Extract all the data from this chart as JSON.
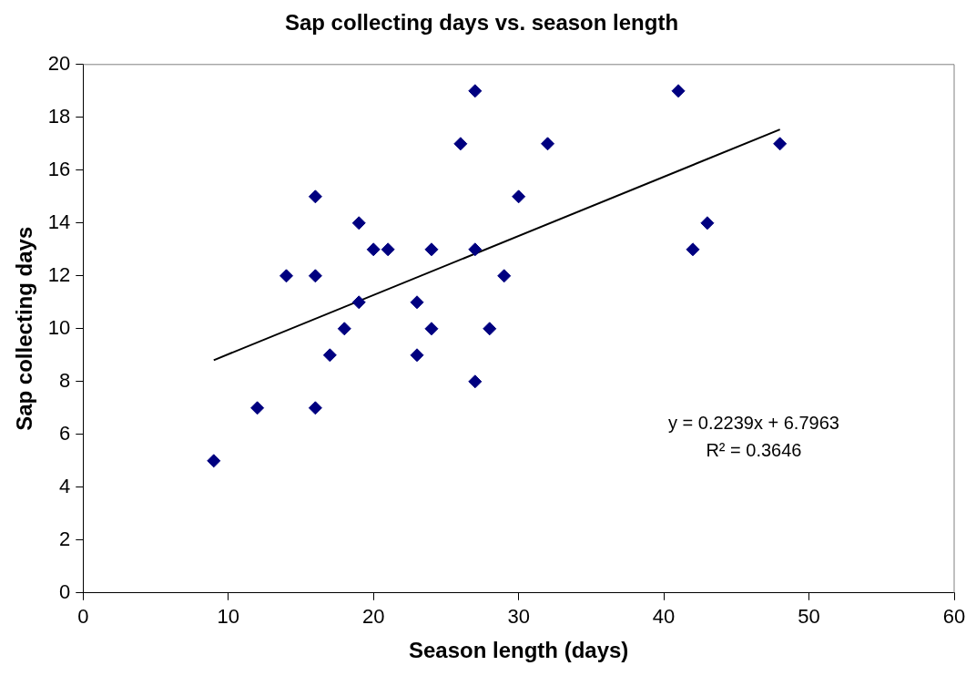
{
  "chart_data": {
    "type": "scatter",
    "title": "Sap collecting days vs. season length",
    "xlabel": "Season length (days)",
    "ylabel": "Sap collecting days",
    "xlim": [
      0,
      60
    ],
    "xticks": [
      0,
      10,
      20,
      30,
      40,
      50,
      60
    ],
    "ylim": [
      0,
      20
    ],
    "yticks": [
      0,
      2,
      4,
      6,
      8,
      10,
      12,
      14,
      16,
      18,
      20
    ],
    "grid": false,
    "legend": false,
    "series": [
      {
        "color": "#000080",
        "marker": "diamond",
        "x": [
          9,
          12,
          14,
          16,
          16,
          16,
          17,
          18,
          19,
          19,
          20,
          21,
          23,
          23,
          24,
          24,
          26,
          27,
          27,
          27,
          28,
          29,
          30,
          32,
          41,
          42,
          43,
          48
        ],
        "values": [
          5,
          7,
          12,
          15,
          12,
          7,
          9,
          10,
          14,
          11,
          13,
          13,
          11,
          9,
          13,
          10,
          17,
          19,
          13,
          8,
          10,
          12,
          15,
          17,
          19,
          13,
          14,
          17
        ]
      },
      {
        "type": "line",
        "color": "#000000",
        "marker": "none",
        "line_style": "solid",
        "x": [
          9,
          48
        ],
        "values": [
          8.81,
          17.54
        ]
      }
    ],
    "annotations": [
      "y = 0.2239x + 6.7963",
      "R² = 0.3646"
    ]
  }
}
